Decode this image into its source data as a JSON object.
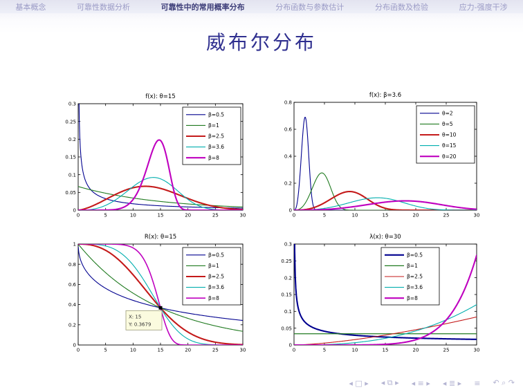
{
  "nav": {
    "items": [
      {
        "label": "基本概念",
        "active": false
      },
      {
        "label": "可靠性数据分析",
        "active": false
      },
      {
        "label": "可靠性中的常用概率分布",
        "active": true
      },
      {
        "label": "分布函数与参数估计",
        "active": false
      },
      {
        "label": "分布函数及检验",
        "active": false
      },
      {
        "label": "应力-强度干涉",
        "active": false
      }
    ]
  },
  "slide": {
    "title": "威布尔分布"
  },
  "colors": {
    "title": "#2f2f8f",
    "nav_active": "#3c3c78",
    "nav_inactive": "#9b9bc6",
    "axis": "#000000",
    "datatip_bg": "#fbfbdf",
    "series_blue": "#00008f",
    "series_green": "#1f7a1f",
    "series_red": "#c41a1a",
    "series_cyan": "#00aeae",
    "series_magenta": "#bf00bf"
  },
  "chart_data": [
    {
      "id": "pdf-vary-beta",
      "type": "line",
      "function": "weibull_pdf",
      "title": "f(x): θ=15",
      "xlabel": "",
      "ylabel": "",
      "xlim": [
        0,
        30
      ],
      "ylim": [
        0,
        0.3
      ],
      "xticks": [
        0,
        5,
        10,
        15,
        20,
        25,
        30
      ],
      "yticks": [
        0,
        0.05,
        0.1,
        0.15,
        0.2,
        0.25,
        0.3
      ],
      "grid": false,
      "legend_position": "top-right",
      "series": [
        {
          "label": "β=0.5",
          "beta": 0.5,
          "theta": 15,
          "color": "#00008f",
          "width": 1.1
        },
        {
          "label": "β=1",
          "beta": 1,
          "theta": 15,
          "color": "#1f7a1f",
          "width": 1.1
        },
        {
          "label": "β=2.5",
          "beta": 2.5,
          "theta": 15,
          "color": "#c41a1a",
          "width": 2.1
        },
        {
          "label": "β=3.6",
          "beta": 3.6,
          "theta": 15,
          "color": "#00aeae",
          "width": 1.1
        },
        {
          "label": "β=8",
          "beta": 8,
          "theta": 15,
          "color": "#bf00bf",
          "width": 2.1
        }
      ]
    },
    {
      "id": "pdf-vary-theta",
      "type": "line",
      "function": "weibull_pdf",
      "title": "f(x): β=3.6",
      "xlabel": "",
      "ylabel": "",
      "xlim": [
        0,
        30
      ],
      "ylim": [
        0,
        0.8
      ],
      "xticks": [
        0,
        5,
        10,
        15,
        20,
        25,
        30
      ],
      "yticks": [
        0,
        0.2,
        0.4,
        0.6,
        0.8
      ],
      "grid": false,
      "legend_position": "top-right",
      "series": [
        {
          "label": "θ=2",
          "beta": 3.6,
          "theta": 2,
          "color": "#00008f",
          "width": 1.1
        },
        {
          "label": "θ=5",
          "beta": 3.6,
          "theta": 5,
          "color": "#1f7a1f",
          "width": 1.1
        },
        {
          "label": "θ=10",
          "beta": 3.6,
          "theta": 10,
          "color": "#c41a1a",
          "width": 2.1
        },
        {
          "label": "θ=15",
          "beta": 3.6,
          "theta": 15,
          "color": "#00aeae",
          "width": 1.1
        },
        {
          "label": "θ=20",
          "beta": 3.6,
          "theta": 20,
          "color": "#bf00bf",
          "width": 2.1
        }
      ]
    },
    {
      "id": "reliability-vary-beta",
      "type": "line",
      "function": "weibull_reliability",
      "title": "R(x): θ=15",
      "xlabel": "",
      "ylabel": "",
      "xlim": [
        0,
        30
      ],
      "ylim": [
        0,
        1
      ],
      "xticks": [
        0,
        5,
        10,
        15,
        20,
        25,
        30
      ],
      "yticks": [
        0,
        0.2,
        0.4,
        0.6,
        0.8,
        1
      ],
      "grid": false,
      "legend_position": "top-right",
      "annotation": {
        "x": 15,
        "y": 0.3679,
        "lines": [
          "X: 15",
          "Y: 0.3679"
        ],
        "marker": "black-square"
      },
      "series": [
        {
          "label": "β=0.5",
          "beta": 0.5,
          "theta": 15,
          "color": "#00008f",
          "width": 1.1
        },
        {
          "label": "β=1",
          "beta": 1,
          "theta": 15,
          "color": "#1f7a1f",
          "width": 1.1
        },
        {
          "label": "β=2.5",
          "beta": 2.5,
          "theta": 15,
          "color": "#c41a1a",
          "width": 2.1
        },
        {
          "label": "β=3.6",
          "beta": 3.6,
          "theta": 15,
          "color": "#00aeae",
          "width": 1.1
        },
        {
          "label": "β=8",
          "beta": 8,
          "theta": 15,
          "color": "#bf00bf",
          "width": 1.6
        }
      ]
    },
    {
      "id": "hazard-vary-beta",
      "type": "line",
      "function": "weibull_hazard",
      "title": "λ(x): θ=30",
      "xlabel": "",
      "ylabel": "",
      "xlim": [
        0,
        30
      ],
      "ylim": [
        0,
        0.3
      ],
      "xticks": [
        0,
        5,
        10,
        15,
        20,
        25,
        30
      ],
      "yticks": [
        0,
        0.05,
        0.1,
        0.15,
        0.2,
        0.25,
        0.3
      ],
      "grid": false,
      "legend_position": "mid-right",
      "series": [
        {
          "label": "β=0.5",
          "beta": 0.5,
          "theta": 30,
          "color": "#00008f",
          "width": 2.1
        },
        {
          "label": "β=1",
          "beta": 1,
          "theta": 30,
          "color": "#1f7a1f",
          "width": 1.3
        },
        {
          "label": "β=2.5",
          "beta": 2.5,
          "theta": 30,
          "color": "#c41a1a",
          "width": 1.1
        },
        {
          "label": "β=3.6",
          "beta": 3.6,
          "theta": 30,
          "color": "#00aeae",
          "width": 1.1
        },
        {
          "label": "β=8",
          "beta": 8,
          "theta": 30,
          "color": "#bf00bf",
          "width": 2.1
        }
      ]
    }
  ],
  "footer": {
    "symbols": [
      "◂ □ ▸",
      "◂ ⧉ ▸",
      "◂ ≡ ▸",
      "◂ ≣ ▸",
      "≡",
      "↶ ⌕ ↷"
    ]
  }
}
